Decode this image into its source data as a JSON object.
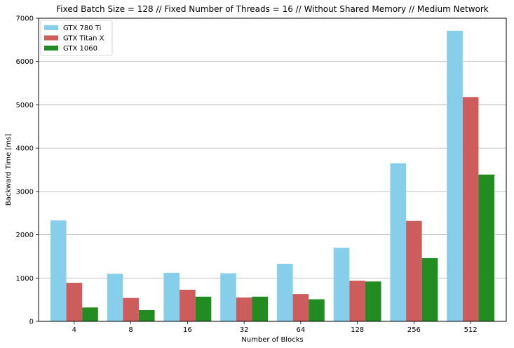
{
  "chart_data": {
    "type": "bar",
    "title": "Fixed Batch Size = 128 // Fixed Number of Threads = 16 // Without Shared Memory // Medium Network",
    "xlabel": "Number of Blocks",
    "ylabel": "Backward Time [ms]",
    "categories": [
      "4",
      "8",
      "16",
      "32",
      "64",
      "128",
      "256",
      "512"
    ],
    "ylim": [
      0,
      7000
    ],
    "yticks": [
      0,
      1000,
      2000,
      3000,
      4000,
      5000,
      6000,
      7000
    ],
    "grid": "horizontal",
    "legend_position": "top-left",
    "series": [
      {
        "name": "GTX 780 Ti",
        "color": "#87ceeb",
        "values": [
          2330,
          1100,
          1120,
          1110,
          1330,
          1700,
          3650,
          6710
        ]
      },
      {
        "name": "GTX Titan X",
        "color": "#cd5c5c",
        "values": [
          890,
          540,
          730,
          550,
          630,
          940,
          2320,
          5180
        ]
      },
      {
        "name": "GTX 1060",
        "color": "#228b22",
        "values": [
          320,
          260,
          570,
          570,
          510,
          920,
          1460,
          3390
        ]
      }
    ]
  }
}
